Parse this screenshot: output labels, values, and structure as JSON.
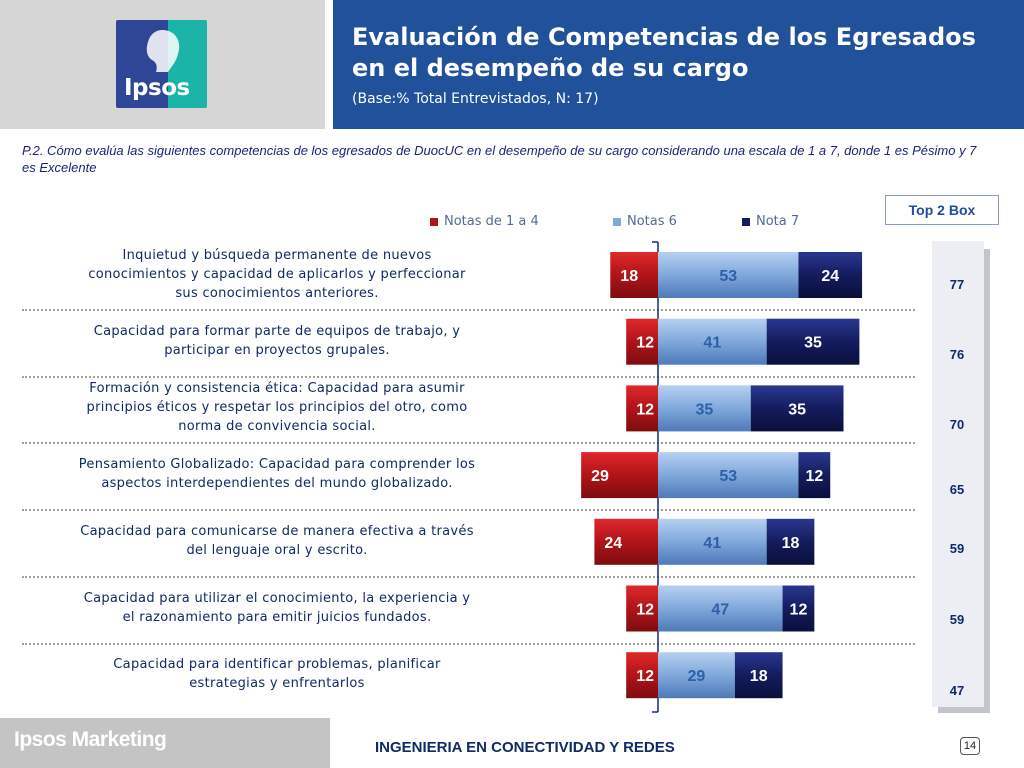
{
  "header": {
    "logo_text": "Ipsos",
    "title_line1": "Evaluación de Competencias de los Egresados",
    "title_line2": "en el desempeño de su cargo",
    "subtitle": "(Base:% Total Entrevistados, N: 17)"
  },
  "question": "P.2. Cómo evalúa las siguientes competencias de los egresados de DuocUC en el desempeño de su cargo  considerando una escala de 1 a 7,  donde 1 es Pésimo y 7 es Excelente",
  "top2_title": "Top 2 Box",
  "colors": {
    "header_blue": "#20519a",
    "low": "#b01418",
    "mid": "#7fa8dc",
    "high": "#141c5e"
  },
  "chart_data": {
    "type": "bar",
    "orientation": "horizontal-stacked-diverging",
    "legend": [
      "Notas de 1 a 4",
      "Notas 6",
      "Nota 7"
    ],
    "categories": [
      [
        "Inquietud y búsqueda permanente de nuevos",
        "conocimientos y capacidad de aplicarlos y perfeccionar",
        "sus conocimientos anteriores."
      ],
      [
        "Capacidad para formar parte de equipos de trabajo, y",
        "participar en proyectos grupales."
      ],
      [
        "Formación y consistencia ética: Capacidad para asumir",
        "principios éticos y respetar los principios del otro, como",
        "norma de convivencia social."
      ],
      [
        "Pensamiento Globalizado: Capacidad para comprender los",
        "aspectos interdependientes del mundo globalizado."
      ],
      [
        "Capacidad para comunicarse de manera efectiva a través",
        "del lenguaje oral y escrito."
      ],
      [
        "Capacidad para utilizar el conocimiento, la experiencia y",
        "el razonamiento para emitir juicios fundados."
      ],
      [
        "Capacidad para identificar problemas, planificar",
        "estrategias y enfrentarlos"
      ]
    ],
    "series": [
      {
        "name": "Notas de 1 a 4",
        "values": [
          18,
          12,
          12,
          29,
          24,
          12,
          12
        ]
      },
      {
        "name": "Notas 6",
        "values": [
          53,
          41,
          35,
          53,
          41,
          47,
          29
        ]
      },
      {
        "name": "Nota 7",
        "values": [
          24,
          35,
          35,
          12,
          18,
          12,
          18
        ]
      }
    ],
    "top2_box": [
      77,
      76,
      70,
      65,
      59,
      59,
      47
    ]
  },
  "footer": {
    "brand": "Ipsos Marketing",
    "title": "INGENIERIA EN CONECTIVIDAD Y REDES",
    "page": "14"
  }
}
